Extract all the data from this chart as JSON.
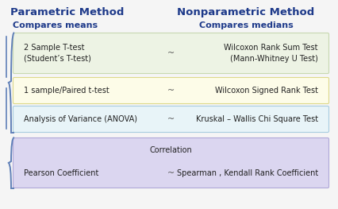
{
  "title_left": "Parametric Method",
  "title_right": "Nonparametric Method",
  "title_color": "#1e3a8a",
  "title_fontsize": 9.5,
  "subtitle_left": "Compares means",
  "subtitle_right": "Compares medians",
  "subtitle_color": "#1e3a8a",
  "subtitle_fontsize": 8,
  "rows": [
    {
      "left": "2 Sample T-test\n(Student’s T-test)",
      "right": "Wilcoxon Rank Sum Test\n(Mann-Whitney U Test)",
      "bg": "#edf3e4",
      "border": "#c8d8b0",
      "right_align": "center"
    },
    {
      "left": "1 sample/Paired t-test",
      "right": "Wilcoxon Signed Rank Test",
      "bg": "#fdfce8",
      "border": "#ddd88a",
      "right_align": "right"
    },
    {
      "left": "Analysis of Variance (ANOVA)",
      "right": "Kruskal – Wallis Chi Square Test",
      "bg": "#e8f4f8",
      "border": "#a8cce0",
      "right_align": "right"
    }
  ],
  "corr_bg": "#dbd6f0",
  "corr_border": "#b0a8d8",
  "corr_title": "Correlation",
  "corr_left": "Pearson Coefficient",
  "corr_right": "Spearman , Kendall Rank Coefficient",
  "tilde": "~",
  "tilde_color": "#555555",
  "row_text_color": "#222222",
  "corr_text_color": "#222222",
  "brace_color": "#6080b8",
  "figure_bg": "#f5f5f5"
}
